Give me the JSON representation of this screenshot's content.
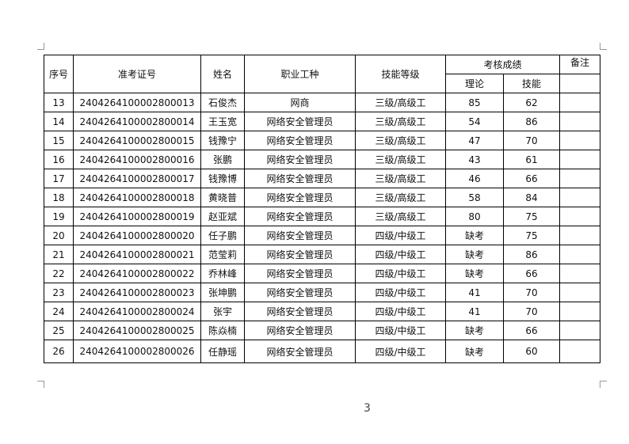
{
  "table": {
    "header": {
      "seq": "序号",
      "exam_id": "准考证号",
      "name": "姓名",
      "job": "职业工种",
      "level": "技能等级",
      "score": "考核成绩",
      "theory": "理论",
      "skill": "技能",
      "remark": "备注"
    },
    "rows": [
      [
        "13",
        "2404264100002800013",
        "石俊杰",
        "网商",
        "三级/高级工",
        "85",
        "62"
      ],
      [
        "14",
        "2404264100002800014",
        "王玉宽",
        "网络安全管理员",
        "三级/高级工",
        "54",
        "86"
      ],
      [
        "15",
        "2404264100002800015",
        "钱豫宁",
        "网络安全管理员",
        "三级/高级工",
        "47",
        "70"
      ],
      [
        "16",
        "2404264100002800016",
        "张鹏",
        "网络安全管理员",
        "三级/高级工",
        "43",
        "61"
      ],
      [
        "17",
        "2404264100002800017",
        "钱豫博",
        "网络安全管理员",
        "三级/高级工",
        "46",
        "66"
      ],
      [
        "18",
        "2404264100002800018",
        "黄晓普",
        "网络安全管理员",
        "三级/高级工",
        "58",
        "84"
      ],
      [
        "19",
        "2404264100002800019",
        "赵亚斌",
        "网络安全管理员",
        "三级/高级工",
        "80",
        "75"
      ],
      [
        "20",
        "2404264100002800020",
        "任子鹏",
        "网络安全管理员",
        "四级/中级工",
        "缺考",
        "75"
      ],
      [
        "21",
        "2404264100002800021",
        "范莹莉",
        "网络安全管理员",
        "四级/中级工",
        "缺考",
        "86"
      ],
      [
        "22",
        "2404264100002800022",
        "乔林峰",
        "网络安全管理员",
        "四级/中级工",
        "缺考",
        "66"
      ],
      [
        "23",
        "2404264100002800023",
        "张坤鹏",
        "网络安全管理员",
        "四级/中级工",
        "41",
        "70"
      ],
      [
        "24",
        "2404264100002800024",
        "张宇",
        "网络安全管理员",
        "四级/中级工",
        "41",
        "70"
      ],
      [
        "25",
        "2404264100002800025",
        "陈焱楠",
        "网络安全管理员",
        "四级/中级工",
        "缺考",
        "66"
      ],
      [
        "26",
        "2404264100002800026",
        "任静瑶",
        "网络安全管理员",
        "四级/中级工",
        "缺考",
        "60"
      ]
    ]
  },
  "page_number": "3"
}
